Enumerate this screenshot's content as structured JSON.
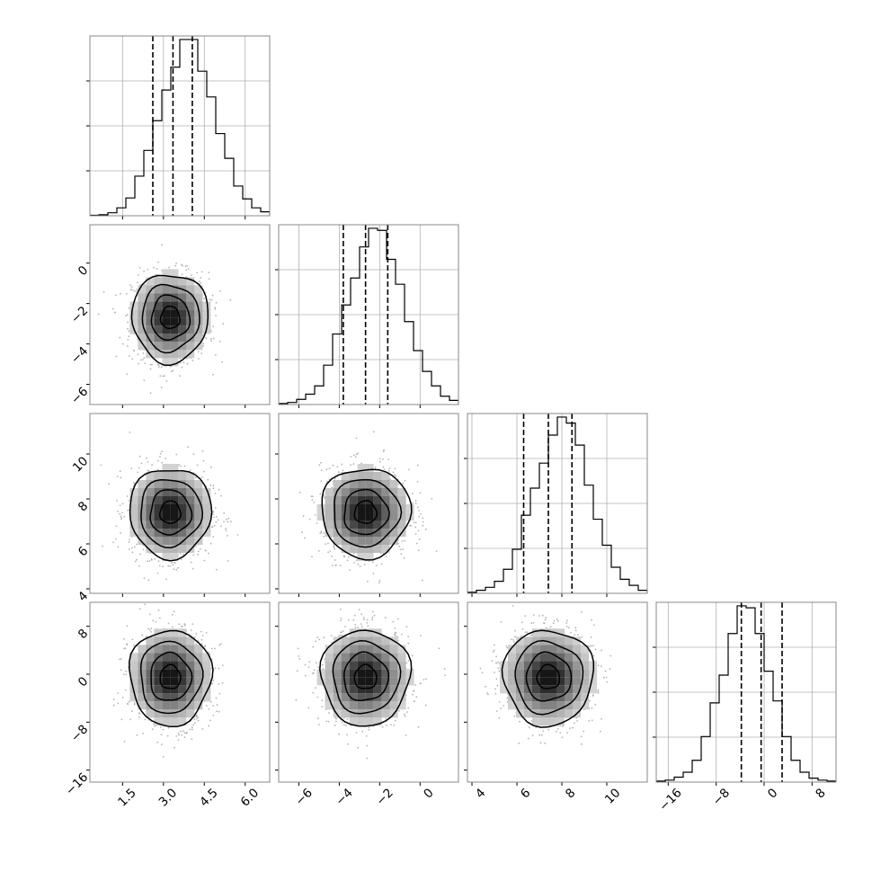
{
  "chart_data": [
    {
      "type": "histogram",
      "panel": "0-0",
      "param": 0,
      "xlim": [
        0.3,
        6.9
      ],
      "bins_start": 0.3,
      "bin_width": 0.33,
      "counts": [
        0.5,
        1,
        3,
        8,
        18,
        40,
        66,
        96,
        127,
        150,
        178,
        178,
        146,
        120,
        83,
        58,
        30,
        17,
        8,
        4,
        1
      ],
      "quantiles": [
        2.61,
        3.35,
        4.06
      ],
      "xticks": [
        "1.5",
        "3.0",
        "4.5",
        "6.0"
      ],
      "xtick_values": [
        1.5,
        3.0,
        4.5,
        6.0
      ],
      "xtick_labels_shown": true
    },
    {
      "type": "histogram",
      "panel": "1-1",
      "param": 1,
      "xlim": [
        -7,
        1.9
      ],
      "bins_start": -7,
      "bin_width": 0.445,
      "counts": [
        1,
        2,
        5,
        10,
        18,
        38,
        68,
        96,
        122,
        152,
        170,
        168,
        140,
        116,
        80,
        52,
        32,
        18,
        8,
        4
      ],
      "quantiles": [
        -3.8,
        -2.7,
        -1.6
      ],
      "xticks": [
        "−6",
        "−4",
        "−2",
        "0"
      ],
      "xtick_values": [
        -6,
        -4,
        -2,
        0
      ],
      "xtick_labels_shown": true
    },
    {
      "type": "histogram",
      "panel": "2-2",
      "param": 2,
      "xlim": [
        3.8,
        11.8
      ],
      "bins_start": 3.8,
      "bin_width": 0.4,
      "counts": [
        1,
        3,
        6,
        12,
        24,
        44,
        78,
        105,
        130,
        158,
        176,
        170,
        148,
        108,
        74,
        48,
        26,
        14,
        8,
        3
      ],
      "quantiles": [
        6.3,
        7.4,
        8.45
      ],
      "xticks": [
        "4",
        "6",
        "8",
        "10"
      ],
      "xtick_values": [
        4,
        6,
        8,
        10
      ],
      "xtick_labels_shown": true
    },
    {
      "type": "histogram",
      "panel": "3-3",
      "param": 3,
      "xlim": [
        -18,
        12
      ],
      "bins_start": -18,
      "bin_width": 1.5,
      "counts": [
        1,
        2,
        5,
        10,
        22,
        46,
        80,
        108,
        150,
        178,
        176,
        150,
        112,
        82,
        46,
        22,
        10,
        4,
        2,
        1
      ],
      "quantiles": [
        -3.8,
        -0.5,
        3.0
      ],
      "xticks": [
        "−16",
        "−8",
        "0",
        "8"
      ],
      "xtick_values": [
        -16,
        -8,
        0,
        8
      ],
      "xtick_labels_shown": true
    },
    {
      "type": "heatmap",
      "panel": "1-0",
      "x_param": 0,
      "y_param": 1,
      "xlim": [
        0.3,
        6.9
      ],
      "ylim": [
        -7,
        1.9
      ],
      "center": [
        3.25,
        -2.7
      ],
      "sigma": [
        0.7,
        1.1
      ],
      "yticks": [
        "−6",
        "−4",
        "−2",
        "0"
      ],
      "ytick_values": [
        -6,
        -4,
        -2,
        0
      ],
      "ytick_labels_shown": true
    },
    {
      "type": "heatmap",
      "panel": "2-0",
      "x_param": 0,
      "y_param": 2,
      "xlim": [
        0.3,
        6.9
      ],
      "ylim": [
        3.8,
        11.8
      ],
      "center": [
        3.25,
        7.4
      ],
      "sigma": [
        0.75,
        1.0
      ],
      "yticks": [
        "4",
        "6",
        "8",
        "10"
      ],
      "ytick_values": [
        4,
        6,
        8,
        10
      ],
      "ytick_labels_shown": true
    },
    {
      "type": "heatmap",
      "panel": "2-1",
      "x_param": 1,
      "y_param": 2,
      "xlim": [
        -7,
        1.9
      ],
      "ylim": [
        3.8,
        11.8
      ],
      "center": [
        -2.7,
        7.4
      ],
      "sigma": [
        1.1,
        1.0
      ]
    },
    {
      "type": "heatmap",
      "panel": "3-0",
      "x_param": 0,
      "y_param": 3,
      "xlim": [
        0.3,
        6.9
      ],
      "ylim": [
        -18,
        12
      ],
      "center": [
        3.25,
        -0.5
      ],
      "sigma": [
        0.75,
        4.0
      ],
      "yticks": [
        "−16",
        "−8",
        "0",
        "8"
      ],
      "ytick_values": [
        -16,
        -8,
        0,
        8
      ],
      "ytick_labels_shown": true
    },
    {
      "type": "heatmap",
      "panel": "3-1",
      "x_param": 1,
      "y_param": 3,
      "xlim": [
        -7,
        1.9
      ],
      "ylim": [
        -18,
        12
      ],
      "center": [
        -2.7,
        -0.5
      ],
      "sigma": [
        1.1,
        4.0
      ]
    },
    {
      "type": "heatmap",
      "panel": "3-2",
      "x_param": 2,
      "y_param": 3,
      "xlim": [
        3.8,
        11.8
      ],
      "ylim": [
        -18,
        12
      ],
      "center": [
        7.4,
        -0.5
      ],
      "sigma": [
        1.0,
        4.0
      ]
    }
  ],
  "colors": {
    "frame": "#888888",
    "grid": "#b0b0b0",
    "line": "#000000",
    "scatter": "#b3b3b3"
  }
}
